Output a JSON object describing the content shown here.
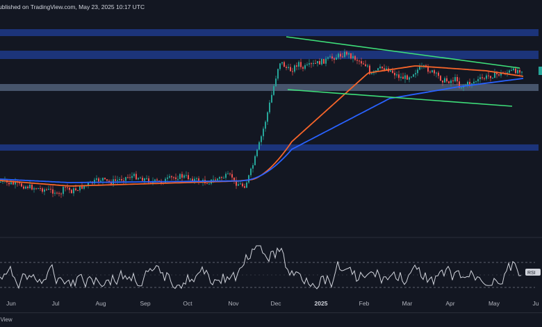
{
  "header": {
    "published_text": "ublished on TradingView.com, May 23, 2025 10:17 UTC"
  },
  "footer": {
    "brand_text": "gView"
  },
  "colors": {
    "background": "#131722",
    "candle_up": "#26a69a",
    "candle_down": "#ef5350",
    "ma_orange": "#f7652a",
    "ma_blue": "#2962ff",
    "trendline": "#3ee07a",
    "resistance_zone": "#1e3a8a",
    "support_zone": "#5a6b85",
    "rsi_line": "#d1d4dc"
  },
  "chart_data": [
    {
      "type": "candlestick",
      "x_axis_labels": [
        "Jun",
        "Jul",
        "Aug",
        "Sep",
        "Oct",
        "Nov",
        "Dec",
        "2025",
        "Feb",
        "Mar",
        "Apr",
        "May",
        "Ju"
      ],
      "series": [
        {
          "name": "price",
          "segments": [
            {
              "from_month": "Jun",
              "to_month": "Nov",
              "level": 0.08,
              "noise": 0.015
            },
            {
              "from_month": "Nov",
              "to_month": "Dec",
              "level_start": 0.08,
              "level_end": 0.87
            },
            {
              "from_month": "Dec",
              "to_month": "May",
              "level": 0.84,
              "noise": 0.04
            }
          ]
        },
        {
          "name": "ma-orange",
          "style": "line"
        },
        {
          "name": "ma-blue",
          "style": "line"
        }
      ],
      "zones": [
        {
          "name": "resistance-1",
          "style": "blue"
        },
        {
          "name": "resistance-2",
          "style": "blue"
        },
        {
          "name": "support-1",
          "style": "gray"
        },
        {
          "name": "support-2",
          "style": "blue"
        }
      ],
      "trendlines": [
        {
          "name": "upper-trendline"
        },
        {
          "name": "lower-trendline"
        }
      ],
      "grid": false
    },
    {
      "type": "line",
      "indicator_label": "RSI",
      "levels": [
        70,
        50,
        30
      ],
      "ylim": [
        0,
        100
      ]
    }
  ]
}
